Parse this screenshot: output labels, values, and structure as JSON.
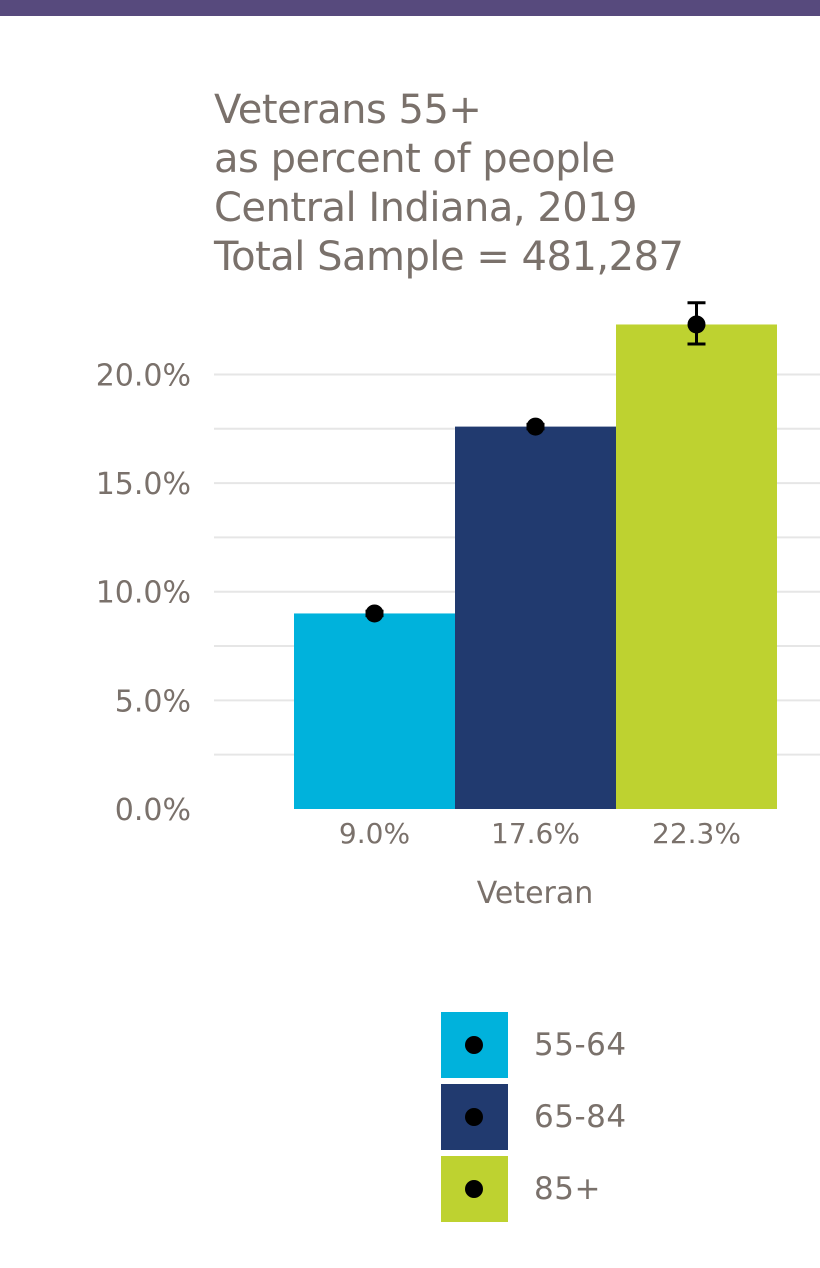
{
  "colors": {
    "top_bar": "#574a7d",
    "text": "#7a716b",
    "grid": "#e6e6e6",
    "marker": "#000000"
  },
  "title_lines": [
    "Veterans 55+",
    "as percent of people",
    "Central Indiana, 2019",
    "Total Sample = 481,287"
  ],
  "chart_data": {
    "type": "bar",
    "title": "Veterans 55+ / as percent of people / Central Indiana, 2019 / Total Sample = 481,287",
    "xlabel": "Veteran",
    "ylabel": "",
    "ylim": [
      0,
      22
    ],
    "y_ticks": [
      0,
      5,
      10,
      15,
      20
    ],
    "y_tick_labels": [
      "0.0%",
      "5.0%",
      "10.0%",
      "15.0%",
      "20.0%"
    ],
    "categories": [
      "9.0%",
      "17.6%",
      "22.3%"
    ],
    "series": [
      {
        "name": "55-64",
        "value": 9.0,
        "color": "#00b2dc",
        "error_low": 8.9,
        "error_high": 9.1
      },
      {
        "name": "65-84",
        "value": 17.6,
        "color": "#213a6f",
        "error_low": 17.5,
        "error_high": 17.7
      },
      {
        "name": "85+",
        "value": 22.3,
        "color": "#bed230",
        "error_low": 21.4,
        "error_high": 23.3
      }
    ],
    "grid": true,
    "legend_position": "bottom"
  }
}
